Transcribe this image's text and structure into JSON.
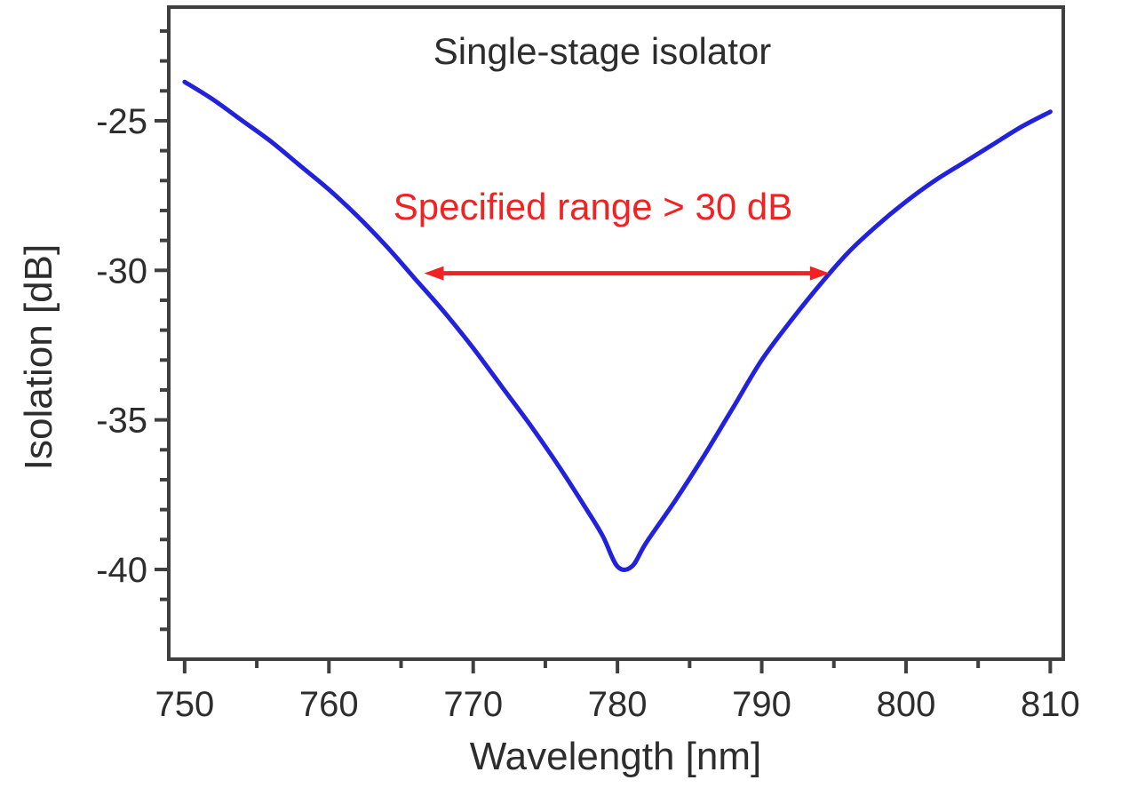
{
  "colors": {
    "curve": "#2222dd",
    "annotation": "#f22222",
    "axis": "#3f3f3f",
    "text": "#2d2d2d",
    "background": "#ffffff"
  },
  "chart_data": {
    "type": "line",
    "title": "Single-stage isolator",
    "xlabel": "Wavelength [nm]",
    "ylabel": "Isolation [dB]",
    "xlim": [
      748.9,
      810.9
    ],
    "ylim": [
      -43.0,
      -21.2
    ],
    "grid": false,
    "legend": "none",
    "x_ticks_major": [
      750,
      760,
      770,
      780,
      790,
      800,
      810
    ],
    "x_ticks_minor": [
      755,
      765,
      775,
      785,
      795,
      805
    ],
    "y_ticks_major": [
      -25,
      -30,
      -35,
      -40
    ],
    "y_ticks_minor_step": 1,
    "series": [
      {
        "name": "isolation-spectrum",
        "color": "#2222dd",
        "x": [
          750,
          752,
          754,
          756,
          758,
          760,
          762,
          764,
          766,
          768,
          770,
          772,
          774,
          776,
          778,
          779,
          780,
          781,
          782,
          784,
          786,
          788,
          790,
          792,
          794,
          796,
          798,
          800,
          802,
          804,
          806,
          808,
          810
        ],
        "y": [
          -23.7,
          -24.3,
          -25.0,
          -25.7,
          -26.5,
          -27.3,
          -28.2,
          -29.2,
          -30.3,
          -31.4,
          -32.6,
          -33.9,
          -35.2,
          -36.6,
          -38.1,
          -38.9,
          -39.9,
          -39.9,
          -39.1,
          -37.7,
          -36.2,
          -34.6,
          -33.0,
          -31.7,
          -30.5,
          -29.4,
          -28.5,
          -27.7,
          -27.0,
          -26.4,
          -25.8,
          -25.2,
          -24.7
        ]
      }
    ],
    "annotations": {
      "spec_label": {
        "text": "Specified range > 30 dB",
        "color": "#f22222",
        "x_nm": 778.3,
        "y_db": -28.3
      },
      "spec_arrow": {
        "color": "#f22222",
        "x_start_nm": 766.6,
        "x_end_nm": 794.7,
        "y_db": -30.1,
        "double_headed": true
      }
    }
  }
}
